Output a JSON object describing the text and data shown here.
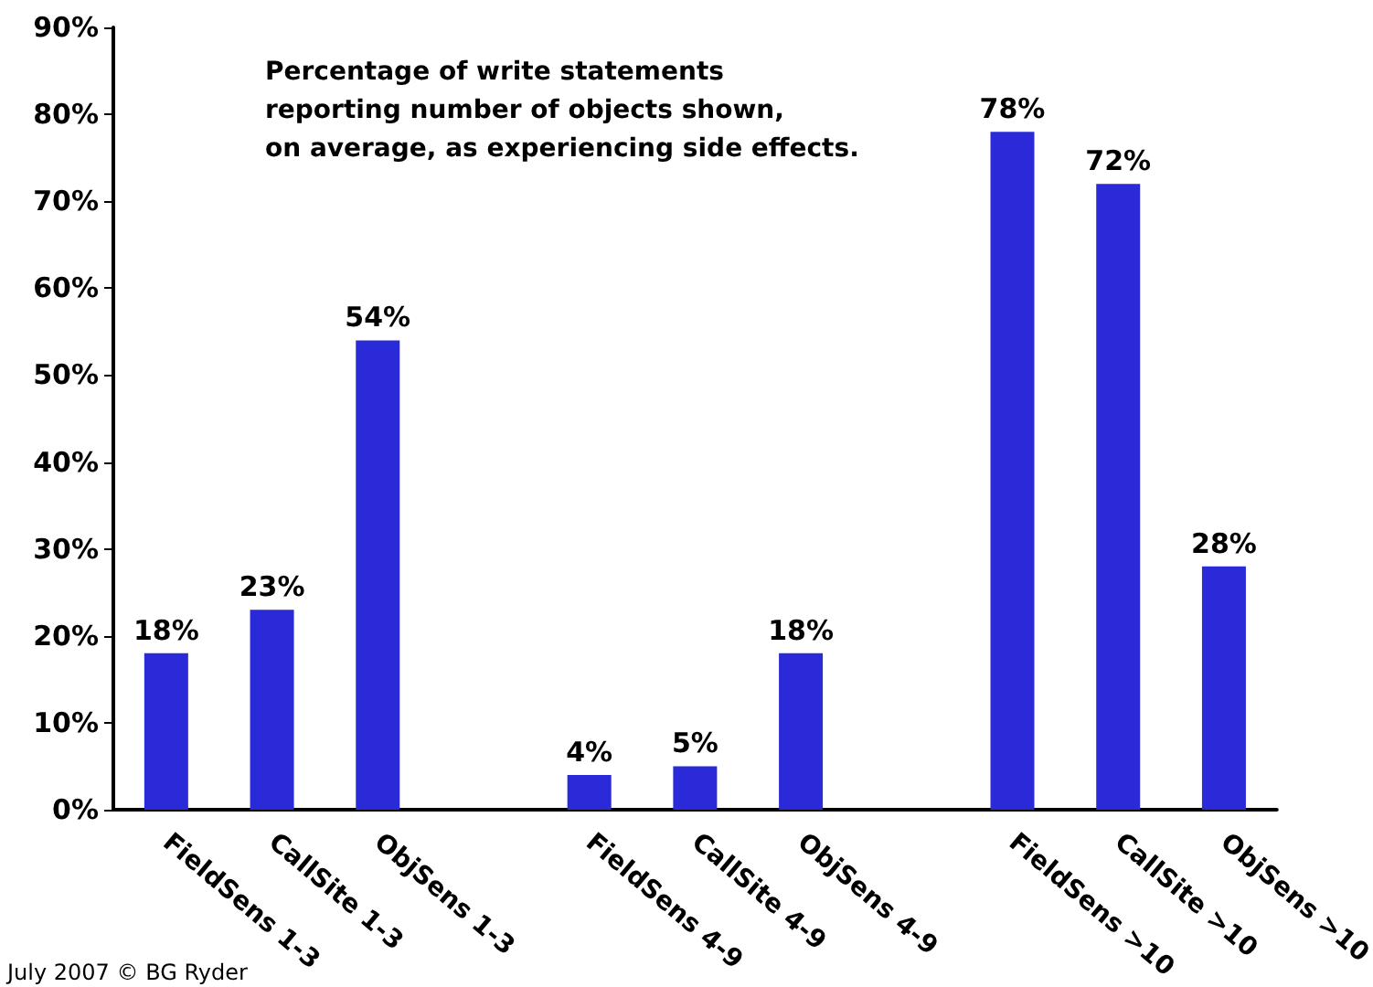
{
  "chart_data": {
    "type": "bar",
    "title": "Percentage of write statements\nreporting number of objects shown,\non average, as experiencing side effects.",
    "categories": [
      "FieldSens 1-3",
      "CallSite 1-3",
      "ObjSens 1-3",
      null,
      "FieldSens 4-9",
      "CallSite 4-9",
      "ObjSens 4-9",
      null,
      "FieldSens >10",
      "CallSite >10",
      "ObjSens >10"
    ],
    "values": [
      18,
      23,
      54,
      null,
      4,
      5,
      18,
      null,
      78,
      72,
      28
    ],
    "value_labels": [
      "18%",
      "23%",
      "54%",
      null,
      "4%",
      "5%",
      "18%",
      null,
      "78%",
      "72%",
      "28%"
    ],
    "color": "#2a2ad8",
    "ylim": [
      0,
      90
    ],
    "yticks": [
      {
        "value": 0,
        "label": "0%"
      },
      {
        "value": 10,
        "label": "10%"
      },
      {
        "value": 20,
        "label": "20%"
      },
      {
        "value": 30,
        "label": "30%"
      },
      {
        "value": 40,
        "label": "40%"
      },
      {
        "value": 50,
        "label": "50%"
      },
      {
        "value": 60,
        "label": "60%"
      },
      {
        "value": 70,
        "label": "70%"
      },
      {
        "value": 80,
        "label": "80%"
      },
      {
        "value": 90,
        "label": "90%"
      }
    ],
    "grid": false,
    "annotations": [
      "July 2007 © BG Ryder"
    ]
  }
}
